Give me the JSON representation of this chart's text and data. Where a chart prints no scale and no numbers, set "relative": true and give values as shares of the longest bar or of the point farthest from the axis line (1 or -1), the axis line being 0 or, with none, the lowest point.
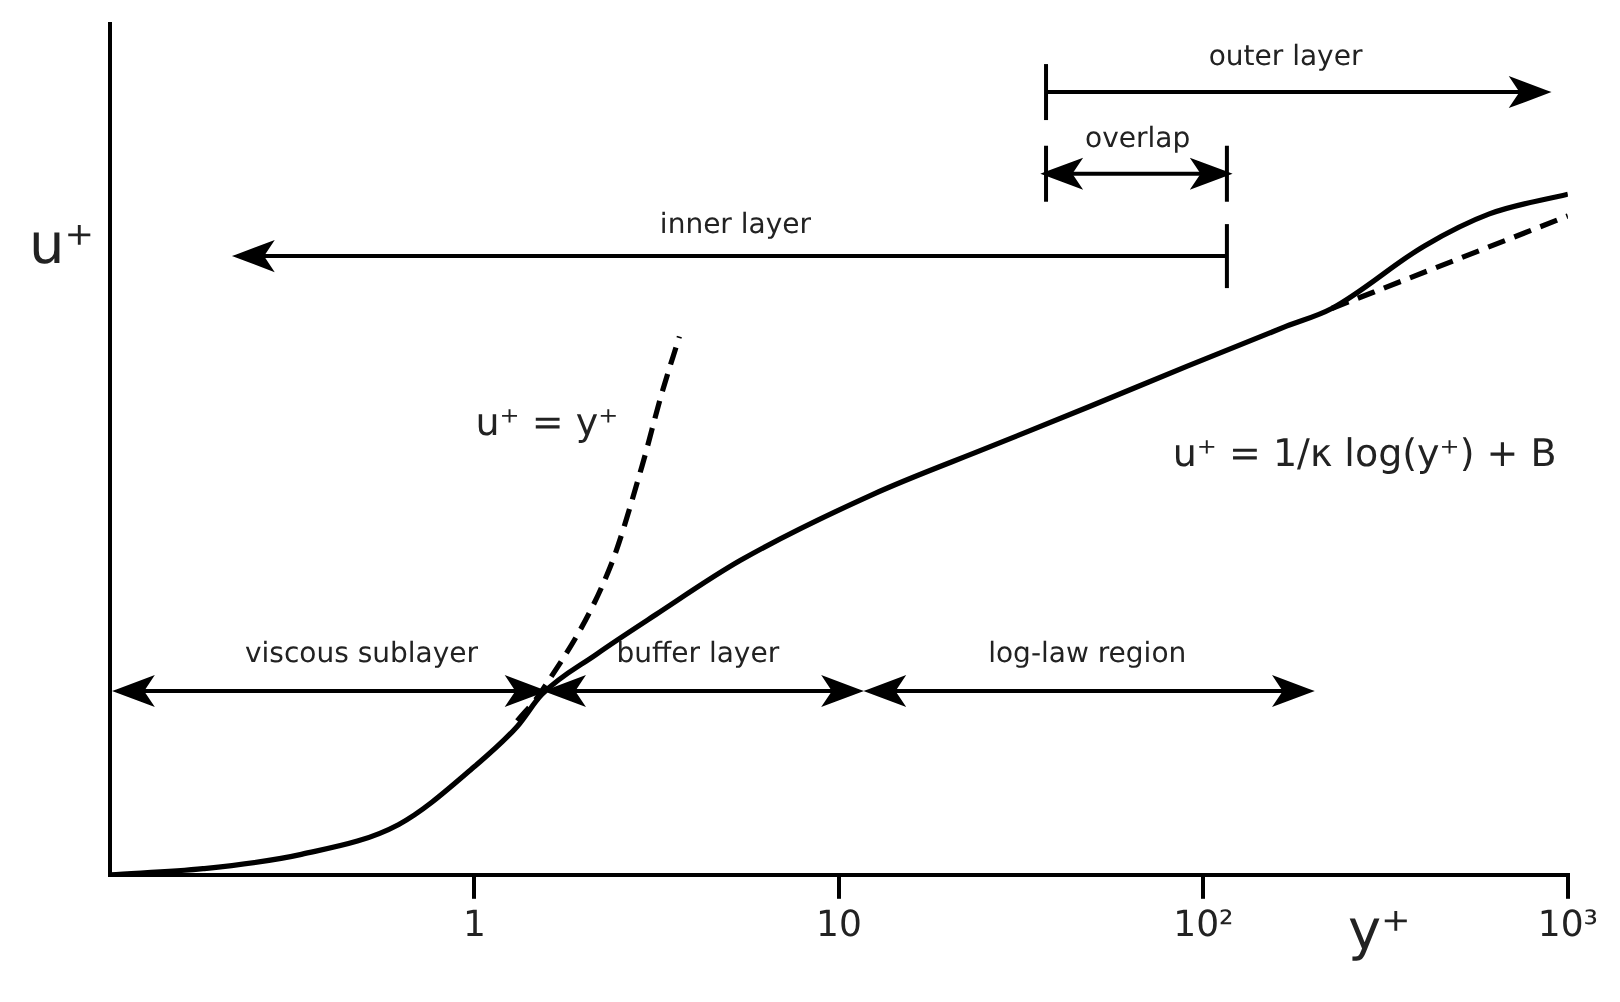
{
  "chart_data": {
    "type": "line",
    "relative": true,
    "xlabel": "y⁺",
    "ylabel": "u⁺",
    "log": "x",
    "xlim": [
      0.1,
      1000
    ],
    "xticks": [
      1,
      10,
      {
        "value": 100,
        "label": "10²"
      },
      {
        "value": 1000,
        "label": "10³"
      }
    ],
    "grid": false,
    "legend": false,
    "marker": "none",
    "series": [
      {
        "color": "#000000",
        "line_style": "solid",
        "x": [
          0.1,
          0.18,
          0.335,
          0.62,
          1,
          1.31,
          1.53,
          2.16,
          3.14,
          5.37,
          12.4,
          26,
          48.7,
          90,
          169,
          225,
          404,
          609,
          1000
        ],
        "values": [
          0,
          0.009,
          0.03,
          0.074,
          0.159,
          0.218,
          0.265,
          0.324,
          0.382,
          0.462,
          0.559,
          0.629,
          0.688,
          0.747,
          0.806,
          0.832,
          0.924,
          0.971,
          1
        ]
      },
      {
        "color": "#000000",
        "line_style": "dashed",
        "x": [
          1.31,
          1.53,
          2.36,
          2.88,
          3.26,
          3.65
        ],
        "values": [
          0.226,
          0.27,
          0.453,
          0.6,
          0.706,
          0.791
        ]
      },
      {
        "color": "#000000",
        "line_style": "dashed",
        "x": [
          225,
          1000
        ],
        "values": [
          0.832,
          0.968
        ]
      }
    ],
    "annotations": [
      "viscous sublayer",
      "buffer layer",
      "log-law region",
      "inner layer",
      "overlap",
      "outer layer",
      "u⁺ = y⁺",
      "u⁺ = 1/κ log(y⁺) + B"
    ]
  }
}
